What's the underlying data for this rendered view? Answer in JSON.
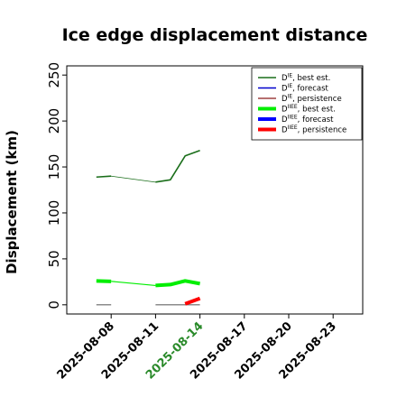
{
  "chart_data": {
    "type": "line",
    "title": "Ice edge displacement distance",
    "ylabel": "Displacement (km)",
    "xlabel": "",
    "xlim": [
      "2025-08-05",
      "2025-08-25"
    ],
    "ylim": [
      -10,
      260
    ],
    "yticks": [
      0,
      50,
      100,
      150,
      200,
      250
    ],
    "xticks": [
      "2025-08-08",
      "2025-08-11",
      "2025-08-14",
      "2025-08-17",
      "2025-08-20",
      "2025-08-23"
    ],
    "highlight_tick": "2025-08-14",
    "highlight_color": "#2a8a2a",
    "legend_position": "top-right",
    "series": [
      {
        "name": "D^IE, best est.",
        "color": "#1a6e1a",
        "width": 1.6,
        "x": [
          "2025-08-07",
          "2025-08-08"
        ],
        "values": [
          139,
          140
        ]
      },
      {
        "name": "D^IE, best est.",
        "color": "#1a6e1a",
        "width": 0.8,
        "x": [
          "2025-08-08",
          "2025-08-11"
        ],
        "values": [
          140,
          133.5
        ]
      },
      {
        "name": "D^IE, best est.",
        "color": "#1a6e1a",
        "width": 1.6,
        "x": [
          "2025-08-11",
          "2025-08-12",
          "2025-08-13",
          "2025-08-14"
        ],
        "values": [
          133.5,
          136,
          162,
          168
        ]
      },
      {
        "name": "D^IE, forecast",
        "color": "#0000cc",
        "width": 1.6,
        "x": [],
        "values": []
      },
      {
        "name": "D^IE, persistence",
        "color": "#666666",
        "width": 1.2,
        "x": [
          "2025-08-07",
          "2025-08-08"
        ],
        "values": [
          0,
          0
        ]
      },
      {
        "name": "D^IE, persistence",
        "color": "#666666",
        "width": 1.2,
        "x": [
          "2025-08-11",
          "2025-08-12",
          "2025-08-13",
          "2025-08-14"
        ],
        "values": [
          0,
          0,
          0,
          0
        ]
      },
      {
        "name": "D^IIEE, best est.",
        "color": "#00ee00",
        "width": 4,
        "x": [
          "2025-08-07",
          "2025-08-08"
        ],
        "values": [
          26,
          25.5
        ]
      },
      {
        "name": "D^IIEE, best est.",
        "color": "#00ee00",
        "width": 1.2,
        "x": [
          "2025-08-08",
          "2025-08-11"
        ],
        "values": [
          25.5,
          21
        ]
      },
      {
        "name": "D^IIEE, best est.",
        "color": "#00ee00",
        "width": 4,
        "x": [
          "2025-08-11",
          "2025-08-12",
          "2025-08-13",
          "2025-08-14"
        ],
        "values": [
          21,
          22,
          26,
          23
        ]
      },
      {
        "name": "D^IIEE, forecast",
        "color": "#0000ff",
        "width": 4,
        "x": [],
        "values": []
      },
      {
        "name": "D^IIEE, persistence",
        "color": "#ff0000",
        "width": 4,
        "x": [
          "2025-08-13",
          "2025-08-14"
        ],
        "values": [
          1,
          7
        ]
      }
    ],
    "legend": [
      {
        "base": "D",
        "sup": "IE",
        "label": ", best est.",
        "color": "#1a6e1a",
        "width": 1.6
      },
      {
        "base": "D",
        "sup": "IE",
        "label": ", forecast",
        "color": "#0000cc",
        "width": 1.6
      },
      {
        "base": "D",
        "sup": "IE",
        "label": ", persistence",
        "color": "#8b1a1a",
        "width": 1.2
      },
      {
        "base": "D",
        "sup": "IIEE",
        "label": ", best est.",
        "color": "#00ee00",
        "width": 4
      },
      {
        "base": "D",
        "sup": "IIEE",
        "label": ", forecast",
        "color": "#0000ff",
        "width": 4
      },
      {
        "base": "D",
        "sup": "IIEE",
        "label": ", persistence",
        "color": "#ff0000",
        "width": 4
      }
    ]
  }
}
